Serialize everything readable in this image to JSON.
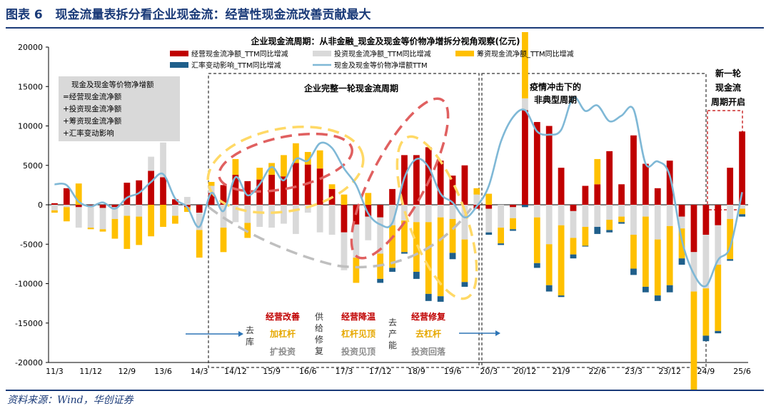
{
  "figure": {
    "label": "图表 6",
    "title": "现金流量表拆分看企业现金流：经营性现金流改善贡献最大",
    "source": "资料来源：Wind，华创证券"
  },
  "colors": {
    "operating": "#c00000",
    "investing": "#d9d9d9",
    "financing": "#ffc000",
    "fx": "#1f5f8b",
    "net": "#7fb8d6",
    "header": "#1a3a78"
  },
  "chart_data": {
    "type": "bar",
    "title": "企业现金流周期：从非金融_现金及现金等价物净增拆分视角观察(亿元)",
    "ylim": [
      -20000,
      20000
    ],
    "yticks": [
      "20000",
      "15000",
      "10000",
      "5000",
      "0",
      "-5000",
      "-10000",
      "-15000",
      "-20000"
    ],
    "xticks": [
      "11/3",
      "11/12",
      "12/9",
      "13/6",
      "14/3",
      "14/12",
      "15/9",
      "16/6",
      "17/3",
      "17/12",
      "18/9",
      "19/6",
      "20/3",
      "20/12",
      "21/9",
      "22/6",
      "23/3",
      "23/12",
      "24/9",
      "25/6"
    ],
    "periods": [
      "11/3",
      "11/6",
      "11/9",
      "11/12",
      "12/3",
      "12/6",
      "12/9",
      "12/12",
      "13/3",
      "13/6",
      "13/9",
      "13/12",
      "14/3",
      "14/6",
      "14/9",
      "14/12",
      "15/3",
      "15/6",
      "15/9",
      "15/12",
      "16/3",
      "16/6",
      "16/9",
      "16/12",
      "17/3",
      "17/6",
      "17/9",
      "17/12",
      "18/3",
      "18/6",
      "18/9",
      "18/12",
      "19/3",
      "19/6",
      "19/9",
      "19/12",
      "20/3",
      "20/6",
      "20/9",
      "20/12",
      "21/3",
      "21/6",
      "21/9",
      "21/12",
      "22/3",
      "22/6",
      "22/9",
      "22/12",
      "23/3",
      "23/6",
      "23/9",
      "23/12",
      "24/3",
      "24/6",
      "24/9",
      "24/12",
      "25/3",
      "25/6"
    ],
    "series": [
      {
        "name": "经营现金流净额_TTM同比增减",
        "key": "operating",
        "values": [
          200,
          2100,
          -300,
          -200,
          -400,
          -300,
          2800,
          3100,
          4300,
          3500,
          700,
          -300,
          -1000,
          1500,
          2500,
          3800,
          3000,
          3200,
          3800,
          3600,
          5300,
          5100,
          4600,
          2000,
          -3500,
          -2500,
          -1500,
          -1600,
          2000,
          6300,
          6300,
          7300,
          5600,
          3700,
          5000,
          -500,
          -500,
          0,
          -300,
          12000,
          10500,
          10000,
          4700,
          -800,
          2400,
          2600,
          6800,
          2600,
          8800,
          5200,
          2100,
          5600,
          -1500,
          -6000,
          -3800,
          -2600,
          4700,
          9300
        ]
      },
      {
        "name": "投资现金流净额_TTM同比增减",
        "key": "investing",
        "values": [
          -700,
          -300,
          -2600,
          -2700,
          -2700,
          -1500,
          -1400,
          -1500,
          1800,
          4400,
          -1400,
          1000,
          -2200,
          900,
          -2900,
          -2200,
          -2300,
          -2800,
          -2900,
          -2400,
          -3700,
          -1000,
          -3500,
          -3800,
          -4800,
          -4200,
          -3000,
          -4600,
          -2600,
          -2000,
          -2200,
          -2200,
          -1600,
          -1800,
          -4400,
          1300,
          -3000,
          -2900,
          -1400,
          1500,
          -1600,
          -5000,
          -2600,
          -3400,
          -2800,
          -2800,
          -1900,
          -1500,
          -3800,
          -1500,
          -4400,
          -2700,
          -1500,
          -5000,
          -6800,
          -5000,
          -1800,
          -500
        ]
      },
      {
        "name": "筹资现金流净额_TTM同比增减",
        "key": "financing",
        "values": [
          -300,
          -1800,
          2700,
          -200,
          -300,
          -2500,
          -4200,
          -3600,
          -4000,
          -2800,
          -1000,
          -600,
          -3500,
          500,
          -3100,
          2000,
          -1900,
          1500,
          1500,
          2700,
          2500,
          1600,
          2300,
          600,
          1300,
          -3200,
          1500,
          -3200,
          -5400,
          -4000,
          -6300,
          -9100,
          -10000,
          -4300,
          -5400,
          800,
          1400,
          -2000,
          -1400,
          8400,
          -5800,
          -5200,
          -8900,
          -2100,
          -2400,
          3200,
          -1300,
          -700,
          -4300,
          -8900,
          -7100,
          -7500,
          -3800,
          -13200,
          -6000,
          -8400,
          -5100,
          -700
        ]
      },
      {
        "name": "汇率变动影响_TTM同比增减",
        "key": "fx",
        "values": [
          0,
          0,
          0,
          0,
          0,
          0,
          0,
          0,
          0,
          0,
          0,
          0,
          0,
          0,
          0,
          0,
          0,
          0,
          0,
          0,
          0,
          0,
          0,
          0,
          0,
          0,
          0,
          -500,
          -500,
          -200,
          -900,
          -900,
          -700,
          -800,
          -600,
          0,
          -300,
          -200,
          -200,
          -300,
          -600,
          -800,
          -200,
          -500,
          -100,
          -900,
          -300,
          -200,
          -800,
          -700,
          -700,
          -900,
          -800,
          -900,
          -700,
          -300,
          -200,
          -300
        ]
      },
      {
        "name": "现金及现金等价物净增额TTM",
        "key": "net",
        "type": "line",
        "values": [
          2600,
          2500,
          400,
          -200,
          300,
          -500,
          900,
          1500,
          2900,
          3900,
          800,
          -300,
          -2800,
          1500,
          -800,
          3500,
          1200,
          2600,
          4800,
          3100,
          5800,
          5600,
          7800,
          7200,
          4600,
          2500,
          -1100,
          -2500,
          -2300,
          3400,
          5800,
          4800,
          1400,
          300,
          -1600,
          -200,
          2400,
          8000,
          11100,
          12000,
          9300,
          8900,
          9500,
          13600,
          11900,
          12600,
          10600,
          11300,
          12100,
          5200,
          5500,
          3700,
          -4500,
          -8800,
          -10300,
          -7000,
          -5400,
          1600
        ]
      }
    ],
    "legend": [
      {
        "label": "经营现金流净额_TTM同比增减",
        "key": "operating"
      },
      {
        "label": "投资现金流净额_TTM同比增减",
        "key": "investing"
      },
      {
        "label": "筹资现金流净额_TTM同比增减",
        "key": "financing"
      },
      {
        "label": "汇率变动影响_TTM同比增减",
        "key": "fx"
      },
      {
        "label": "现金及现金等价物净增额TTM",
        "key": "net"
      }
    ],
    "formula_box": [
      "现金及现金等价物净增额",
      "=经营现金流净额",
      "+投资现金流净额",
      "+筹资现金流净额",
      "+汇率变动影响"
    ],
    "annotations": {
      "cycle1_title": "企业完整一轮现金流周期",
      "cycle2_title_1": "疫情冲击下的",
      "cycle2_title_2": "非典型周期",
      "new_cycle": [
        "新一轮",
        "现金流",
        "周期开启"
      ],
      "phase_destock": [
        "去",
        "库"
      ],
      "phase_a_red": "经营改善",
      "phase_a_yellow": "加杠杆",
      "phase_a_gray": "扩投资",
      "phase_supply": [
        "供",
        "给",
        "修",
        "复"
      ],
      "phase_b_red": "经营降温",
      "phase_b_yellow": "杠杆见顶",
      "phase_b_gray": "投资见顶",
      "phase_capacity": [
        "去",
        "产",
        "能"
      ],
      "phase_c_red": "经营修复",
      "phase_c_yellow": "去杠杆",
      "phase_c_gray": "投资回落"
    }
  }
}
